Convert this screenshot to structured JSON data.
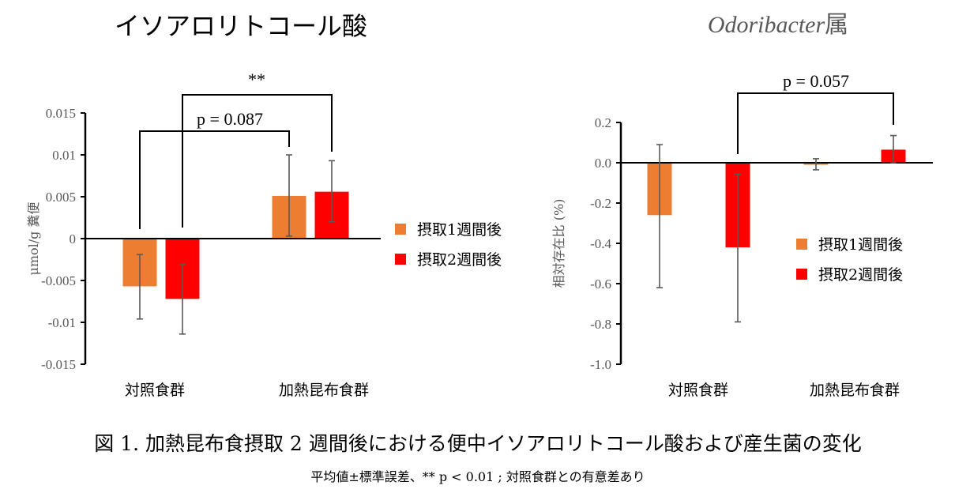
{
  "caption": {
    "main": "図 1. 加熱昆布食摂取 2 週間後における便中イソアロリトコール酸および産生菌の変化",
    "note": "平均値±標準誤差、** p < 0.01 ; 対照食群との有意差あり"
  },
  "colors": {
    "week1": "#ED7D31",
    "week2": "#FF0000",
    "error_bar": "#595959",
    "axis": "#000000"
  },
  "chart_data": [
    {
      "type": "bar",
      "title": "イソアロリトコール酸",
      "ylabel": "μmol/g 糞便",
      "xlabel": "",
      "ylim": [
        -0.015,
        0.015
      ],
      "yticks": [
        0.015,
        0.01,
        0.005,
        0,
        -0.005,
        -0.01,
        -0.015
      ],
      "ytick_labels": [
        "0.015",
        "0.01",
        "0.005",
        "0",
        "-0.005",
        "-0.01",
        "-0.015"
      ],
      "categories": [
        "対照食群",
        "加熱昆布食群"
      ],
      "legend_position": "right",
      "series": [
        {
          "name": "摂取1週間後",
          "values": [
            -0.0057,
            0.0051
          ],
          "error_low": [
            -0.0096,
            0.0003
          ],
          "error_high": [
            -0.0019,
            0.01
          ]
        },
        {
          "name": "摂取2週間後",
          "values": [
            -0.0072,
            0.0056
          ],
          "error_low": [
            -0.0114,
            0.002
          ],
          "error_high": [
            -0.0031,
            0.0093
          ]
        }
      ],
      "annotations": [
        {
          "text": "p = 0.087",
          "from": "対照食群 摂取1週間後",
          "to": "加熱昆布食群 摂取1週間後"
        },
        {
          "text": "**",
          "from": "対照食群 摂取2週間後",
          "to": "加熱昆布食群 摂取2週間後"
        }
      ]
    },
    {
      "type": "bar",
      "title": "Odoribacter属",
      "title_italic_part": "Odoribacter",
      "title_suffix": "属",
      "ylabel": "相対存在比 (%)",
      "xlabel": "",
      "ylim": [
        -1.0,
        0.2
      ],
      "yticks": [
        0.2,
        0.0,
        -0.2,
        -0.4,
        -0.6,
        -0.8,
        -1.0
      ],
      "ytick_labels": [
        "0.2",
        "0.0",
        "-0.2",
        "-0.4",
        "-0.6",
        "-0.8",
        "-1.0"
      ],
      "categories": [
        "対照食群",
        "加熱昆布食群"
      ],
      "legend_position": "right",
      "series": [
        {
          "name": "摂取1週間後",
          "values": [
            -0.26,
            -0.01
          ],
          "error_low": [
            -0.62,
            -0.035
          ],
          "error_high": [
            0.09,
            0.02
          ]
        },
        {
          "name": "摂取2週間後",
          "values": [
            -0.42,
            0.065
          ],
          "error_low": [
            -0.79,
            0.0
          ],
          "error_high": [
            -0.057,
            0.135
          ]
        }
      ],
      "annotations": [
        {
          "text": "p = 0.057",
          "from": "対照食群 摂取2週間後",
          "to": "加熱昆布食群 摂取2週間後"
        }
      ]
    }
  ]
}
